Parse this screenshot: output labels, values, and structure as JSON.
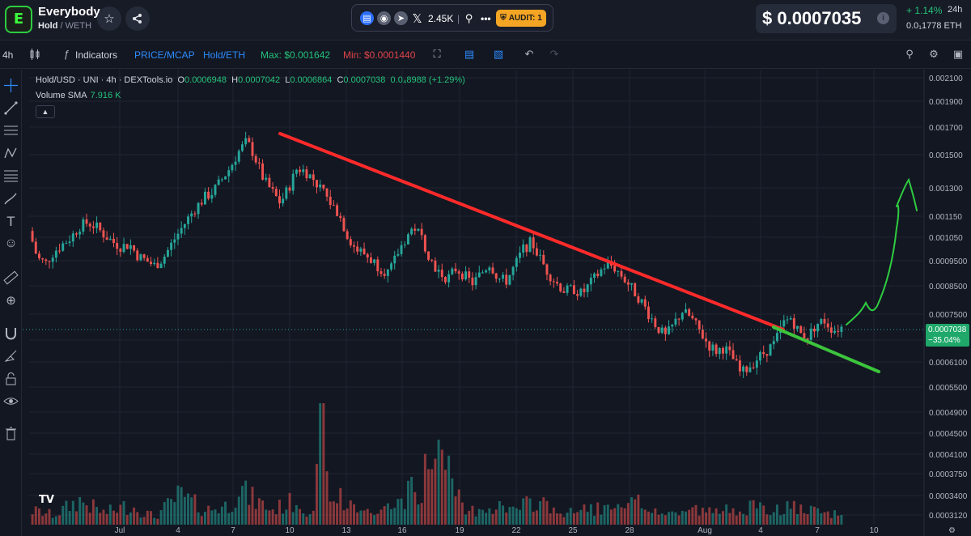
{
  "header": {
    "logo_text": "E",
    "token_name": "Everybody",
    "pair_base": "Hold",
    "pair_sep": " / ",
    "pair_quote": "WETH",
    "social_count": "2.45K",
    "audit_label": "AUDIT: 1",
    "price": "$ 0.0007035",
    "change": "+ 1.14%",
    "change_period": "24h",
    "eth_price": "0.0₁1778 ETH"
  },
  "toolbar": {
    "timeframe": "4h",
    "indicators": "Indicators",
    "price_mcap": "PRICE/MCAP",
    "pair_toggle": "Hold/ETH",
    "max_label": "Max: $0.001642",
    "min_label": "Min: $0.0001440"
  },
  "legend": {
    "symbol": "Hold/USD · UNI · 4h · DEXTools.io",
    "o_key": "O",
    "o_val": "0.0006948",
    "h_key": "H",
    "h_val": "0.0007042",
    "l_key": "L",
    "l_val": "0.0006864",
    "c_key": "C",
    "c_val": "0.0007038",
    "change": "0.0₄8988 (+1.29%)",
    "volume_label": "Volume SMA",
    "volume_value": "7.916 K",
    "collapse_icon": "chevron-up-icon"
  },
  "price_tag": {
    "value": "0.0007038",
    "change": "−35.04%"
  },
  "colors": {
    "up": "#26a69a",
    "down": "#ef5350",
    "trend_down": "#ff2a2a",
    "trend_support": "#3cc43c",
    "annotation": "#2ecc40",
    "background": "#131722",
    "grid": "#1f2433"
  },
  "chart_data": {
    "type": "candlestick",
    "title": "Hold/USD · UNI · 4h · DEXTools.io",
    "xlabel": "",
    "ylabel": "",
    "x_tick_labels": [
      "Jul",
      "4",
      "7",
      "10",
      "13",
      "16",
      "19",
      "22",
      "25",
      "28",
      "Aug",
      "4",
      "7",
      "10"
    ],
    "y_tick_labels": [
      "0.002100",
      "0.001900",
      "0.001700",
      "0.001500",
      "0.001300",
      "0.001150",
      "0.001050",
      "0.0009500",
      "0.0008500",
      "0.0007500",
      "0.0006700",
      "0.0006100",
      "0.0005500",
      "0.0004900",
      "0.0004500",
      "0.0004100",
      "0.0003750",
      "0.0003400",
      "0.0003120"
    ],
    "ylim": [
      0.00031,
      0.00213
    ],
    "current_price": 0.0007038,
    "series_path_pct": [
      [
        0,
        0.00108
      ],
      [
        1,
        0.00096
      ],
      [
        2,
        0.00094
      ],
      [
        3,
        0.00099
      ],
      [
        4,
        0.00102
      ],
      [
        5,
        0.00105
      ],
      [
        6,
        0.0011
      ],
      [
        7,
        0.00112
      ],
      [
        8,
        0.0011
      ],
      [
        9,
        0.00106
      ],
      [
        10,
        0.00103
      ],
      [
        11,
        0.00101
      ],
      [
        12,
        0.00102
      ],
      [
        13,
        0.00097
      ],
      [
        14,
        0.00095
      ],
      [
        15,
        0.00093
      ],
      [
        16,
        0.00096
      ],
      [
        17,
        0.00102
      ],
      [
        18,
        0.00108
      ],
      [
        19,
        0.00114
      ],
      [
        20,
        0.0012
      ],
      [
        21,
        0.00125
      ],
      [
        22,
        0.00128
      ],
      [
        23,
        0.00135
      ],
      [
        24,
        0.00142
      ],
      [
        25,
        0.00152
      ],
      [
        26,
        0.0016
      ],
      [
        27,
        0.00148
      ],
      [
        28,
        0.00135
      ],
      [
        29,
        0.00128
      ],
      [
        30,
        0.00122
      ],
      [
        31,
        0.0013
      ],
      [
        32,
        0.00142
      ],
      [
        33,
        0.0014
      ],
      [
        34,
        0.00135
      ],
      [
        35,
        0.00128
      ],
      [
        36,
        0.00122
      ],
      [
        37,
        0.00116
      ],
      [
        38,
        0.00106
      ],
      [
        39,
        0.001
      ],
      [
        40,
        0.00098
      ],
      [
        41,
        0.00095
      ],
      [
        42,
        0.00092
      ],
      [
        43,
        0.0009
      ],
      [
        44,
        0.00098
      ],
      [
        45,
        0.00105
      ],
      [
        46,
        0.0011
      ],
      [
        47,
        0.00104
      ],
      [
        48,
        0.00095
      ],
      [
        49,
        0.0009
      ],
      [
        50,
        0.00088
      ],
      [
        51,
        0.00092
      ],
      [
        52,
        0.00089
      ],
      [
        53,
        0.00086
      ],
      [
        54,
        0.0009
      ],
      [
        55,
        0.00094
      ],
      [
        56,
        0.00088
      ],
      [
        57,
        0.00087
      ],
      [
        58,
        0.00093
      ],
      [
        59,
        0.001
      ],
      [
        60,
        0.00103
      ],
      [
        61,
        0.00096
      ],
      [
        62,
        0.0009
      ],
      [
        63,
        0.00086
      ],
      [
        64,
        0.00083
      ],
      [
        65,
        0.00084
      ],
      [
        66,
        0.00082
      ],
      [
        67,
        0.00086
      ],
      [
        68,
        0.0009
      ],
      [
        69,
        0.00094
      ],
      [
        70,
        0.00092
      ],
      [
        71,
        0.00088
      ],
      [
        72,
        0.00084
      ],
      [
        73,
        0.0008
      ],
      [
        74,
        0.00075
      ],
      [
        75,
        0.00071
      ],
      [
        76,
        0.00068
      ],
      [
        77,
        0.00072
      ],
      [
        78,
        0.00076
      ],
      [
        79,
        0.00074
      ],
      [
        80,
        0.0007
      ],
      [
        81,
        0.00066
      ],
      [
        82,
        0.00064
      ],
      [
        83,
        0.00065
      ],
      [
        84,
        0.00062
      ],
      [
        85,
        0.00058
      ],
      [
        86,
        0.0006
      ],
      [
        87,
        0.00062
      ],
      [
        88,
        0.00064
      ],
      [
        89,
        0.00066
      ],
      [
        90,
        0.00072
      ],
      [
        91,
        0.00074
      ],
      [
        92,
        0.00069
      ],
      [
        93,
        0.00068
      ],
      [
        94,
        0.00072
      ],
      [
        95,
        0.00073
      ],
      [
        96,
        0.0007
      ],
      [
        97,
        0.00071
      ]
    ],
    "volume_path_pct": [
      [
        0,
        0.15
      ],
      [
        3,
        0.1
      ],
      [
        6,
        0.25
      ],
      [
        9,
        0.12
      ],
      [
        12,
        0.2
      ],
      [
        15,
        0.08
      ],
      [
        18,
        0.3
      ],
      [
        21,
        0.15
      ],
      [
        24,
        0.2
      ],
      [
        25,
        0.4
      ],
      [
        26,
        0.3
      ],
      [
        29,
        0.15
      ],
      [
        32,
        0.25
      ],
      [
        34,
        0.1
      ],
      [
        35,
        1.0
      ],
      [
        36,
        0.35
      ],
      [
        38,
        0.2
      ],
      [
        41,
        0.12
      ],
      [
        44,
        0.2
      ],
      [
        47,
        0.45
      ],
      [
        49,
        0.7
      ],
      [
        52,
        0.12
      ],
      [
        55,
        0.2
      ],
      [
        58,
        0.15
      ],
      [
        61,
        0.25
      ],
      [
        64,
        0.1
      ],
      [
        67,
        0.18
      ],
      [
        70,
        0.14
      ],
      [
        73,
        0.22
      ],
      [
        76,
        0.1
      ],
      [
        79,
        0.16
      ],
      [
        82,
        0.12
      ],
      [
        85,
        0.2
      ],
      [
        88,
        0.14
      ],
      [
        91,
        0.18
      ],
      [
        94,
        0.12
      ],
      [
        97,
        0.1
      ]
    ],
    "annotations": [
      {
        "type": "trendline",
        "label": "descending resistance"
      },
      {
        "type": "trendline",
        "label": "support"
      },
      {
        "type": "freehand",
        "label": "projected breakout"
      }
    ]
  }
}
